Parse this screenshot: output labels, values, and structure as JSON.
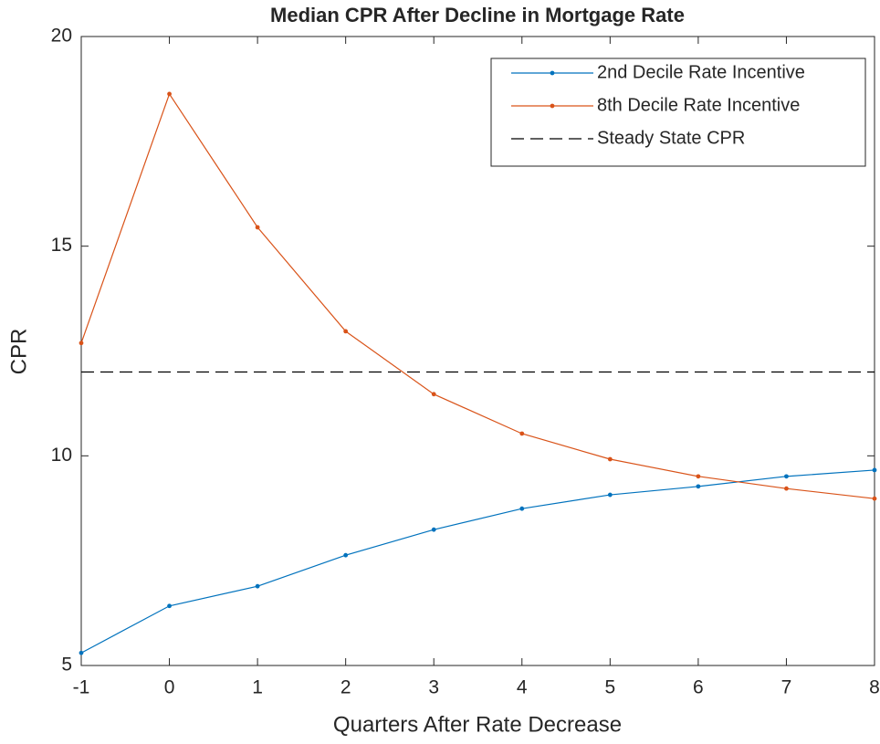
{
  "chart_data": {
    "type": "line",
    "title": "Median CPR After Decline in Mortgage Rate",
    "x_label": "Quarters After Rate Decrease",
    "y_label": "CPR",
    "x": [
      -1,
      0,
      1,
      2,
      3,
      4,
      5,
      6,
      7,
      8
    ],
    "series": [
      {
        "name": "2nd Decile Rate Incentive",
        "color": "#0072BD",
        "values": [
          5.3,
          6.42,
          6.89,
          7.63,
          8.24,
          8.74,
          9.07,
          9.27,
          9.51,
          9.66
        ]
      },
      {
        "name": "8th Decile Rate Incentive",
        "color": "#D95319",
        "values": [
          12.69,
          18.63,
          15.45,
          12.97,
          11.47,
          10.53,
          9.92,
          9.51,
          9.22,
          8.98
        ]
      }
    ],
    "hlines": [
      {
        "name": "Steady State CPR",
        "value": 12,
        "color": "#000000",
        "dashed": true
      }
    ],
    "xlim": [
      -1,
      8
    ],
    "xticks": [
      -1,
      0,
      1,
      2,
      3,
      4,
      5,
      6,
      7,
      8
    ],
    "ylim": [
      5,
      20
    ],
    "yticks": [
      5,
      10,
      15,
      20
    ],
    "grid": false,
    "legend": "top-right"
  }
}
